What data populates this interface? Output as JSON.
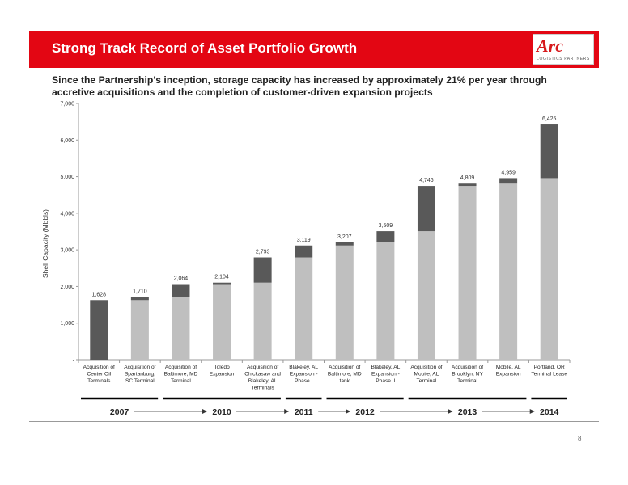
{
  "header": {
    "title": "Strong Track Record of Asset Portfolio Growth",
    "logo_text_main": "Arc",
    "logo_text_sub": "LOGISTICS PARTNERS"
  },
  "subtitle": "Since the Partnership’s inception, storage capacity has increased by approximately 21% per year through accretive acquisitions and the completion of customer-driven expansion projects",
  "page_number": "8",
  "colors": {
    "brand_red": "#e30613",
    "bar_light": "#bfbfbf",
    "bar_dark": "#595959",
    "text": "#222222"
  },
  "chart_data": {
    "type": "bar",
    "stacked": true,
    "ylabel": "Shell Capacity (Mbbls)",
    "ylim": [
      0,
      7000
    ],
    "yticks": [
      0,
      1000,
      2000,
      3000,
      4000,
      5000,
      6000,
      7000
    ],
    "ytick_labels": [
      "-",
      "1,000",
      "2,000",
      "3,000",
      "4,000",
      "5,000",
      "6,000",
      "7,000"
    ],
    "grid": false,
    "categories": [
      [
        "Acquisition of",
        "Center Oil",
        "Terminals"
      ],
      [
        "Acquisition of",
        "Spartanburg,",
        "SC Terminal"
      ],
      [
        "Acquisition of",
        "Baltimore, MD",
        "Terminal"
      ],
      [
        "Toledo",
        "Expansion"
      ],
      [
        "Acquisition of",
        "Chickasaw and",
        "Blakeley, AL",
        "Terminals"
      ],
      [
        "Blakeley, AL",
        "Expansion -",
        "Phase I"
      ],
      [
        "Acquisition of",
        "Baltimore, MD",
        "tank"
      ],
      [
        "Blakeley, AL",
        "Expansion -",
        "Phase II"
      ],
      [
        "Acquisition of",
        "Mobile, AL",
        "Terminal"
      ],
      [
        "Acquisition of",
        "Brooklyn, NY",
        "Terminal"
      ],
      [
        "Mobile, AL",
        "Expansion"
      ],
      [
        "Portland, OR",
        "Terminal Lease"
      ]
    ],
    "series": [
      {
        "values": [
          0,
          1628,
          1710,
          2064,
          2104,
          2793,
          3119,
          3207,
          3509,
          4746,
          4809,
          4959
        ]
      },
      {
        "values": [
          1628,
          82,
          354,
          40,
          689,
          326,
          88,
          302,
          1237,
          63,
          150,
          1466
        ]
      }
    ],
    "total_labels": [
      "1,628",
      "1,710",
      "2,064",
      "2,104",
      "2,793",
      "3,119",
      "3,207",
      "3,509",
      "4,746",
      "4,809",
      "4,959",
      "6,425"
    ],
    "years": [
      {
        "label": "2007",
        "start": 0,
        "end": 1
      },
      {
        "label": "2010",
        "start": 2,
        "end": 4
      },
      {
        "label": "2011",
        "start": 5,
        "end": 5
      },
      {
        "label": "2012",
        "start": 6,
        "end": 7
      },
      {
        "label": "2013",
        "start": 8,
        "end": 10
      },
      {
        "label": "2014",
        "start": 11,
        "end": 11
      }
    ]
  }
}
